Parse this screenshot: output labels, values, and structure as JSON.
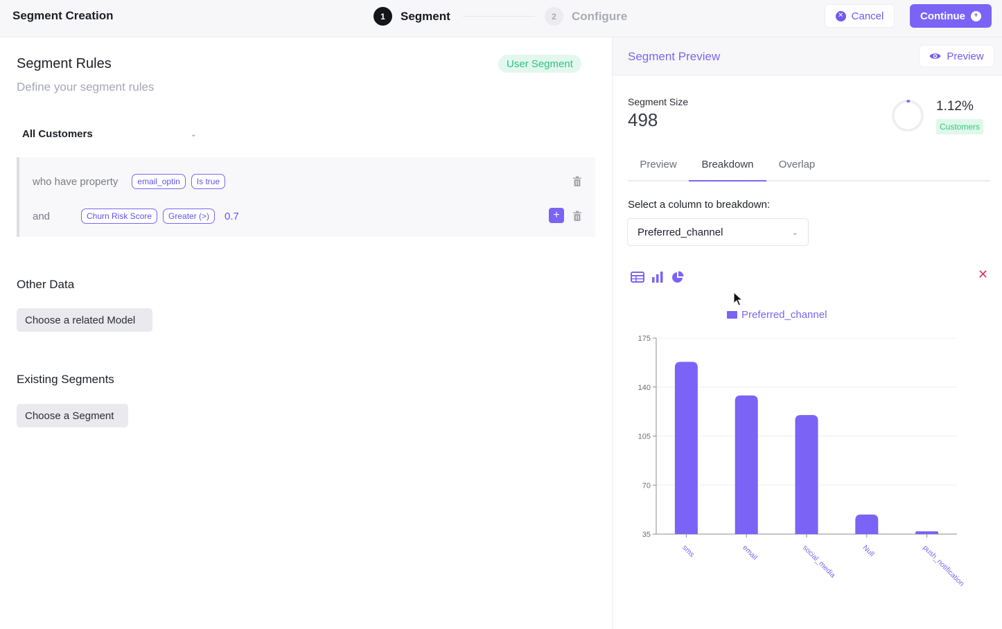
{
  "app_title": "Segment Creation",
  "steps": [
    {
      "number": "1",
      "label": "Segment"
    },
    {
      "number": "2",
      "label": "Configure"
    }
  ],
  "actions": {
    "cancel": "Cancel",
    "continue": "Continue"
  },
  "rules": {
    "title": "Segment Rules",
    "subtitle": "Define your segment rules",
    "badge": "User Segment",
    "base": "All Customers",
    "conditions": [
      {
        "prefix": "who have property",
        "property": "email_optin",
        "operator": "Is true",
        "value": ""
      },
      {
        "prefix": "and",
        "property": "Churn Risk Score",
        "operator": "Greater (>)",
        "value": "0.7"
      }
    ]
  },
  "other_data": {
    "title": "Other Data",
    "button": "Choose a related Model"
  },
  "existing_segments": {
    "title": "Existing Segments",
    "button": "Choose a Segment"
  },
  "preview": {
    "title": "Segment Preview",
    "button": "Preview",
    "size_label": "Segment Size",
    "size_value": "498",
    "percent": "1.12%",
    "percent_fraction": 0.0112,
    "percent_label": "Customers",
    "tabs": [
      "Preview",
      "Breakdown",
      "Overlap"
    ],
    "active_tab": "Breakdown",
    "breakdown_label": "Select a column to breakdown:",
    "selected_column": "Preferred_channel"
  },
  "icons": {
    "cancel": "x-circle-icon",
    "continue": "plus-circle-icon",
    "preview": "eye-icon",
    "trash": "trash-icon",
    "add": "plus-icon",
    "table_view": "table-icon",
    "bar_view": "bar-chart-icon",
    "pie_view": "pie-chart-icon",
    "close": "close-icon"
  },
  "colors": {
    "accent": "#7b63f6",
    "success": "#2ec27e",
    "danger": "#e0325f"
  },
  "chart_data": {
    "type": "bar",
    "categories": [
      "sms",
      "email",
      "social_media",
      "Null",
      "push_notification"
    ],
    "series": [
      {
        "name": "Preferred_channel",
        "values": [
          158,
          134,
          120,
          49,
          37
        ]
      }
    ],
    "ylim": [
      35,
      175
    ],
    "yticks": [
      35,
      70,
      105,
      140,
      175
    ],
    "grid": true,
    "legend": "top"
  }
}
